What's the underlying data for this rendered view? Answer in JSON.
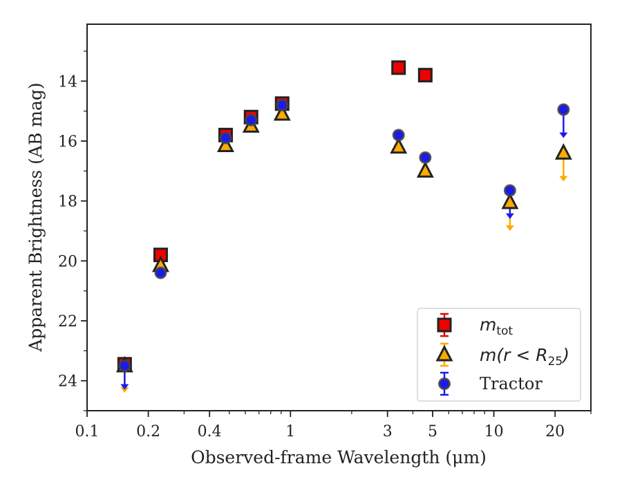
{
  "chart_data": {
    "type": "scatter",
    "xlabel": "Observed-frame Wavelength (μm)",
    "ylabel": "Apparent Brightness (AB mag)",
    "xscale": "log",
    "xlim": [
      0.1,
      30
    ],
    "ylim": [
      25,
      12.1
    ],
    "y_inverted": true,
    "x_ticks": [
      0.1,
      0.2,
      0.4,
      1,
      3,
      5,
      10,
      20
    ],
    "x_tick_labels": [
      "0.1",
      "0.2",
      "0.4",
      "1",
      "3",
      "5",
      "10",
      "20"
    ],
    "y_ticks": [
      14,
      16,
      18,
      20,
      22,
      24
    ],
    "y_tick_labels": [
      "14",
      "16",
      "18",
      "20",
      "22",
      "24"
    ],
    "legend_position": "lower-right",
    "series": [
      {
        "name": "m_tot",
        "label_main": "m",
        "label_sub": "tot",
        "marker": "square",
        "color": "#ee0000",
        "edge_color": "#222222",
        "points": [
          {
            "x": 0.153,
            "y": 23.45
          },
          {
            "x": 0.23,
            "y": 19.8
          },
          {
            "x": 0.48,
            "y": 15.8
          },
          {
            "x": 0.64,
            "y": 15.2
          },
          {
            "x": 0.91,
            "y": 14.75
          },
          {
            "x": 3.4,
            "y": 13.55
          },
          {
            "x": 4.6,
            "y": 13.8
          }
        ],
        "upper_limits": []
      },
      {
        "name": "m(r < R25)",
        "label_main": "m(r < R",
        "label_sub": "25",
        "label_end": ")",
        "marker": "triangle",
        "color": "#ffaa00",
        "edge_color": "#222222",
        "points": [
          {
            "x": 0.153,
            "y": 23.5
          },
          {
            "x": 0.23,
            "y": 20.15
          },
          {
            "x": 0.48,
            "y": 16.15
          },
          {
            "x": 0.64,
            "y": 15.5
          },
          {
            "x": 0.91,
            "y": 15.1
          },
          {
            "x": 3.4,
            "y": 16.2
          },
          {
            "x": 4.6,
            "y": 17.0
          },
          {
            "x": 12.0,
            "y": 18.05
          },
          {
            "x": 22.0,
            "y": 16.4
          }
        ],
        "upper_limits": [
          {
            "x": 0.153,
            "y_from": 23.5,
            "y_to": 24.4
          },
          {
            "x": 12.0,
            "y_from": 18.05,
            "y_to": 19.0
          },
          {
            "x": 22.0,
            "y_from": 16.4,
            "y_to": 17.35
          }
        ]
      },
      {
        "name": "Tractor",
        "label_main": "Tractor",
        "marker": "circle",
        "color": "#1a1aee",
        "edge_color": "#444444",
        "points": [
          {
            "x": 0.153,
            "y": 23.5
          },
          {
            "x": 0.23,
            "y": 20.4
          },
          {
            "x": 0.48,
            "y": 15.9
          },
          {
            "x": 0.64,
            "y": 15.3
          },
          {
            "x": 0.91,
            "y": 14.8
          },
          {
            "x": 3.4,
            "y": 15.8
          },
          {
            "x": 4.6,
            "y": 16.55
          },
          {
            "x": 12.0,
            "y": 17.65
          },
          {
            "x": 22.0,
            "y": 14.95
          }
        ],
        "upper_limits": [
          {
            "x": 0.153,
            "y_from": 23.5,
            "y_to": 24.3
          },
          {
            "x": 12.0,
            "y_from": 17.65,
            "y_to": 18.6
          },
          {
            "x": 22.0,
            "y_from": 14.95,
            "y_to": 15.9
          }
        ]
      }
    ]
  }
}
